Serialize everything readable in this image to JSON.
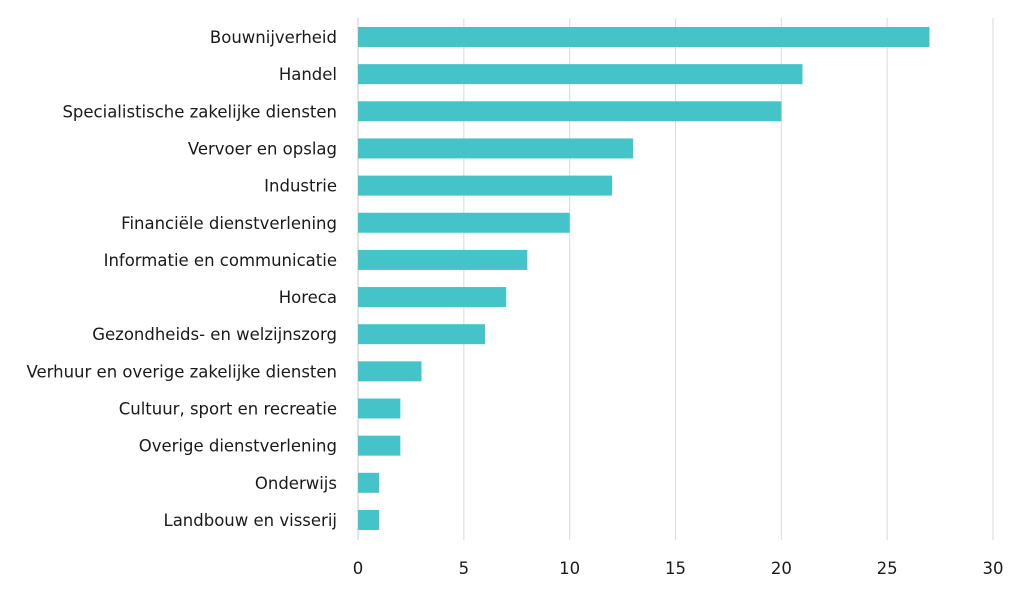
{
  "chart_data": {
    "type": "bar",
    "orientation": "horizontal",
    "categories": [
      "Bouwnijverheid",
      "Handel",
      "Specialistische zakelijke diensten",
      "Vervoer en opslag",
      "Industrie",
      "Financiële dienstverlening",
      "Informatie en communicatie",
      "Horeca",
      "Gezondheids- en welzijnszorg",
      "Verhuur en overige zakelijke diensten",
      "Cultuur, sport en recreatie",
      "Overige dienstverlening",
      "Onderwijs",
      "Landbouw en visserij"
    ],
    "values": [
      27,
      21,
      20,
      13,
      12,
      10,
      8,
      7,
      6,
      3,
      2,
      2,
      1,
      1
    ],
    "xlim": [
      0,
      30
    ],
    "xticks": [
      "0",
      "5",
      "10",
      "15",
      "20",
      "25",
      "30"
    ],
    "grid": true,
    "legend": "none",
    "bar_color": "#44c3c8",
    "title": "",
    "xlabel": "",
    "ylabel": ""
  }
}
